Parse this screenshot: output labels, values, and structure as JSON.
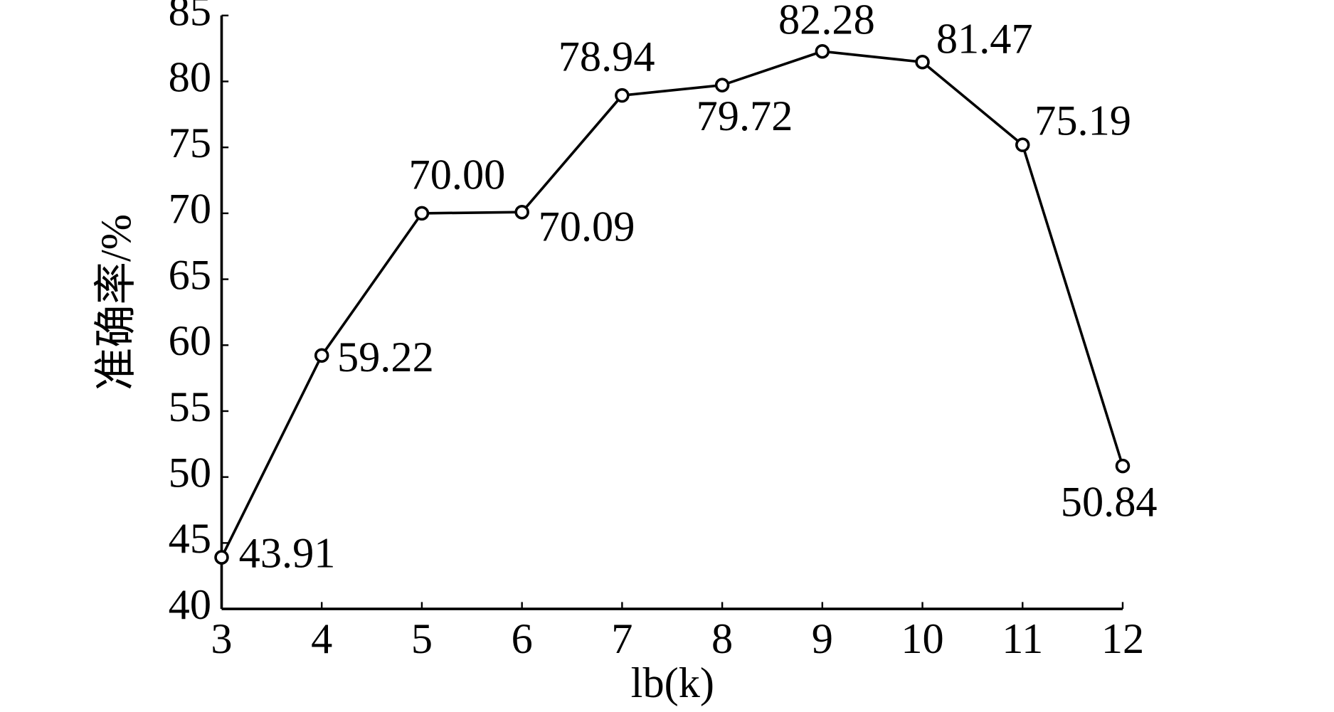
{
  "chart_data": {
    "type": "line",
    "x_label": "lb(k)",
    "y_label": "准确率/%",
    "x": [
      3,
      4,
      5,
      6,
      7,
      8,
      9,
      10,
      11,
      12
    ],
    "values": [
      43.91,
      59.22,
      70.0,
      70.09,
      78.94,
      79.72,
      82.28,
      81.47,
      75.19,
      50.84
    ],
    "value_labels": [
      "43.91",
      "59.22",
      "70.00",
      "70.09",
      "78.94",
      "79.72",
      "82.28",
      "81.47",
      "75.19",
      "50.84"
    ],
    "color": "#000000",
    "marker": "circle",
    "xlim": [
      3,
      12
    ],
    "xticks": [
      3,
      4,
      5,
      6,
      7,
      8,
      9,
      10,
      11,
      12
    ],
    "ylim": [
      40,
      85
    ],
    "yticks": [
      40,
      45,
      50,
      55,
      60,
      65,
      70,
      75,
      80,
      85
    ],
    "grid": false
  }
}
